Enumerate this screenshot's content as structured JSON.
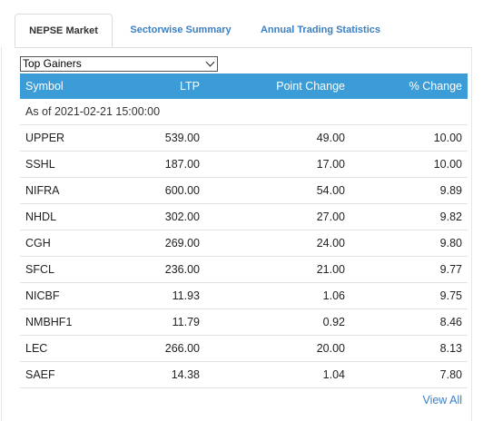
{
  "tabs": [
    "NEPSE Market",
    "Sectorwise Summary",
    "Annual Trading Statistics"
  ],
  "select": {
    "value": "Top Gainers"
  },
  "table": {
    "headers": [
      "Symbol",
      "LTP",
      "Point Change",
      "% Change"
    ],
    "as_of": "As of 2021-02-21 15:00:00",
    "rows": [
      [
        "UPPER",
        "539.00",
        "49.00",
        "10.00"
      ],
      [
        "SSHL",
        "187.00",
        "17.00",
        "10.00"
      ],
      [
        "NIFRA",
        "600.00",
        "54.00",
        "9.89"
      ],
      [
        "NHDL",
        "302.00",
        "27.00",
        "9.82"
      ],
      [
        "CGH",
        "269.00",
        "24.00",
        "9.80"
      ],
      [
        "SFCL",
        "236.00",
        "21.00",
        "9.77"
      ],
      [
        "NICBF",
        "11.93",
        "1.06",
        "9.75"
      ],
      [
        "NMBHF1",
        "11.79",
        "0.92",
        "8.46"
      ],
      [
        "LEC",
        "266.00",
        "20.00",
        "8.13"
      ],
      [
        "SAEF",
        "14.38",
        "1.04",
        "7.80"
      ]
    ]
  },
  "view_all": "View All",
  "colors": {
    "header_bg": "#3b9cd8",
    "link": "#3a7fc4"
  }
}
